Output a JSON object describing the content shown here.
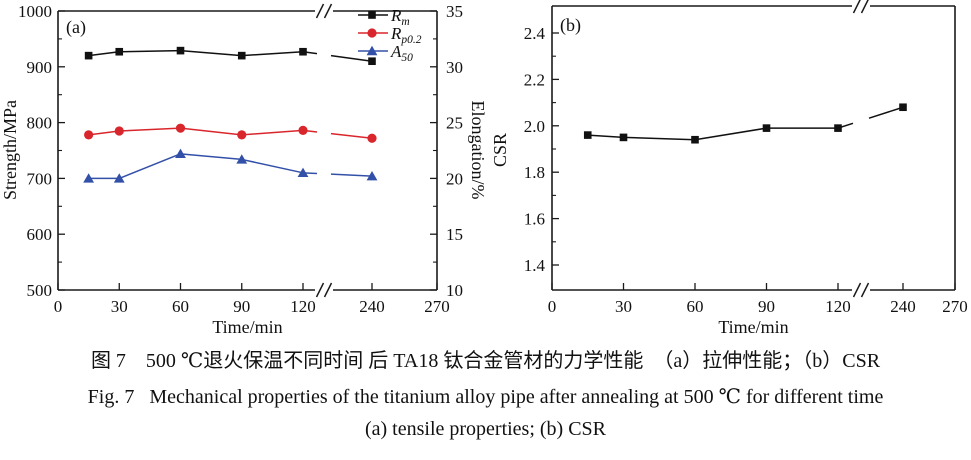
{
  "figure": {
    "caption_zh": "图 7　500 ℃退火保温不同时间 后 TA18 钛合金管材的力学性能　（a）拉伸性能；（b）CSR",
    "caption_en_line1": "Fig. 7   Mechanical properties of the titanium alloy pipe after annealing at 500 ℃ for different time",
    "caption_en_line2": "(a) tensile properties; (b) CSR"
  },
  "colors": {
    "axis": "#1a1a1a",
    "black_series": "#111111",
    "red_series": "#d9262c",
    "blue_series": "#3350a8"
  },
  "chart_data": [
    {
      "panel": "a",
      "panel_label": "(a)",
      "type": "line",
      "xlabel": "Time/min",
      "ylabel_left": "Strength/MPa",
      "ylabel_right": "Elongation/%",
      "x": [
        15,
        30,
        60,
        90,
        120,
        240
      ],
      "x_ticks": [
        0,
        30,
        60,
        90,
        120,
        240,
        270
      ],
      "x_break_between": [
        120,
        240
      ],
      "ylim_left": [
        500,
        1000
      ],
      "yticks_left": [
        500,
        600,
        700,
        800,
        900,
        1000
      ],
      "yticks_left_minor": [
        550,
        650,
        750,
        850,
        950
      ],
      "ylim_right": [
        10,
        35
      ],
      "yticks_right": [
        10,
        15,
        20,
        25,
        30,
        35
      ],
      "yticks_right_minor": [
        12.5,
        17.5,
        22.5,
        27.5,
        32.5
      ],
      "legend_position": "top-right",
      "series": [
        {
          "name": "Rm",
          "label_base": "R",
          "label_sub": "m",
          "axis": "left",
          "color": "#111111",
          "marker": "square",
          "values": [
            920,
            927,
            929,
            920,
            927,
            910
          ]
        },
        {
          "name": "Rp0.2",
          "label_base": "R",
          "label_sub": "p0.2",
          "axis": "left",
          "color": "#d9262c",
          "marker": "circle",
          "values": [
            778,
            785,
            790,
            778,
            786,
            772
          ]
        },
        {
          "name": "A50",
          "label_base": "A",
          "label_sub": "50",
          "axis": "right",
          "color": "#3350a8",
          "marker": "triangle",
          "values": [
            20.0,
            20.0,
            22.2,
            21.7,
            20.5,
            20.2
          ]
        }
      ]
    },
    {
      "panel": "b",
      "panel_label": "(b)",
      "type": "line",
      "xlabel": "Time/min",
      "ylabel": "CSR",
      "x": [
        15,
        30,
        60,
        90,
        120,
        240
      ],
      "x_ticks": [
        0,
        30,
        60,
        90,
        120,
        240,
        270
      ],
      "x_break_between": [
        120,
        240
      ],
      "ylim": [
        1.3,
        2.5
      ],
      "yticks": [
        1.4,
        1.6,
        1.8,
        2.0,
        2.2,
        2.4
      ],
      "yticks_minor": [
        1.5,
        1.7,
        1.9,
        2.1,
        2.3
      ],
      "series": [
        {
          "name": "CSR",
          "label_base": "CSR",
          "label_sub": "",
          "axis": "left",
          "color": "#111111",
          "marker": "square",
          "values": [
            1.96,
            1.95,
            1.94,
            1.99,
            1.99,
            2.08
          ]
        }
      ]
    }
  ]
}
